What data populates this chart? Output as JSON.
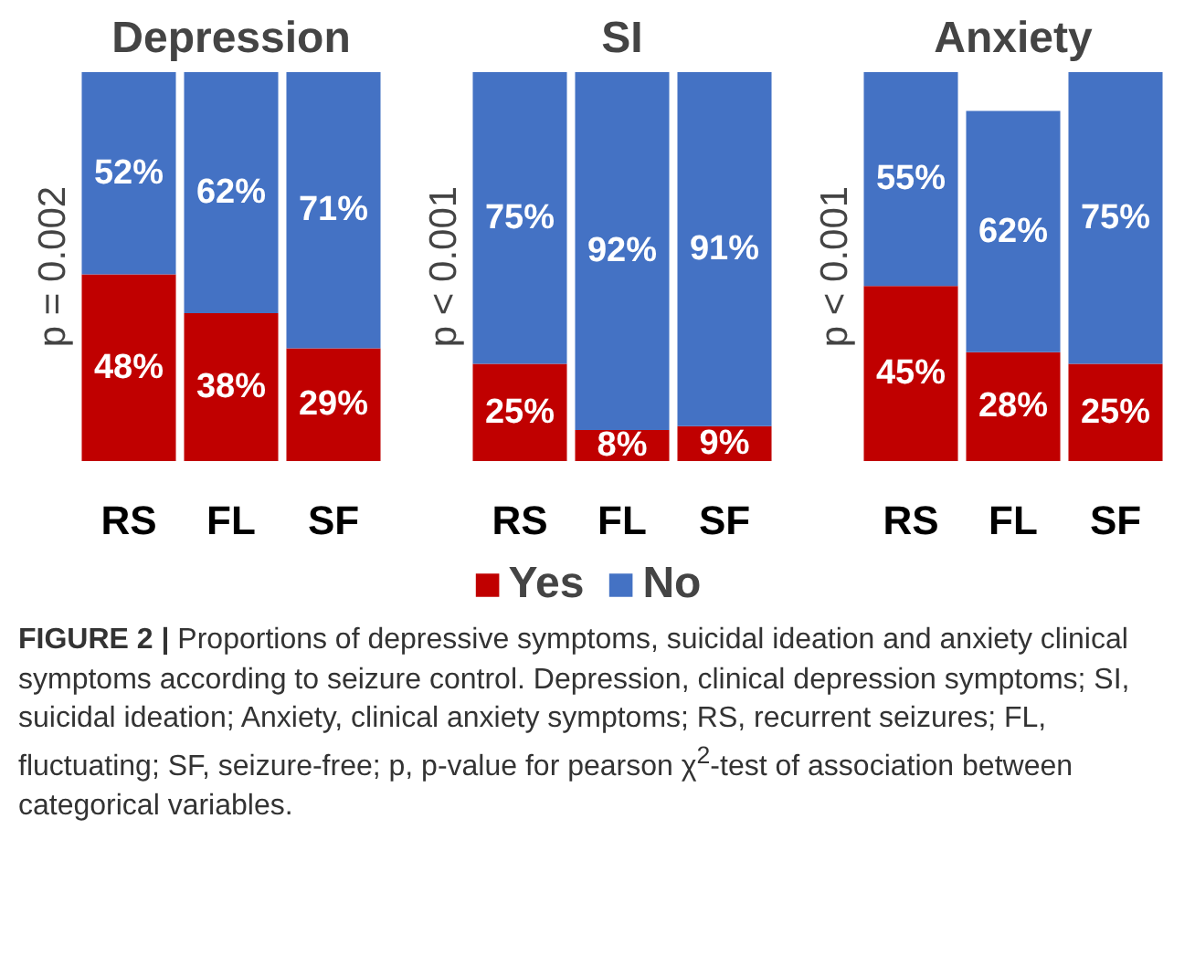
{
  "chart_data": [
    {
      "type": "bar",
      "title": "Depression",
      "ylabel": "p = 0.002",
      "categories": [
        "RS",
        "FL",
        "SF"
      ],
      "stacked": true,
      "tick_labels": "x",
      "series": [
        {
          "color": "#c00000",
          "values": [
            48,
            38,
            29
          ],
          "value_labels": [
            "48%",
            "38%",
            "29%"
          ]
        },
        {
          "color": "#4472c4",
          "values": [
            52,
            62,
            71
          ],
          "value_labels": [
            "52%",
            "62%",
            "71%"
          ]
        }
      ]
    },
    {
      "type": "bar",
      "title": "SI",
      "ylabel": "p < 0.001",
      "categories": [
        "RS",
        "FL",
        "SF"
      ],
      "stacked": true,
      "tick_labels": "x",
      "legend": "bottom",
      "series": [
        {
          "name": "Yes",
          "color": "#c00000",
          "values": [
            25,
            8,
            9
          ],
          "value_labels": [
            "25%",
            "8%",
            "9%"
          ]
        },
        {
          "name": "No",
          "color": "#4472c4",
          "values": [
            75,
            92,
            91
          ],
          "value_labels": [
            "75%",
            "92%",
            "91%"
          ]
        }
      ]
    },
    {
      "type": "bar",
      "title": "Anxiety",
      "ylabel": "p < 0.001",
      "categories": [
        "RS",
        "FL",
        "SF"
      ],
      "stacked": true,
      "tick_labels": "x",
      "series": [
        {
          "color": "#c00000",
          "values": [
            45,
            28,
            25
          ],
          "value_labels": [
            "45%",
            "28%",
            "25%"
          ]
        },
        {
          "color": "#4472c4",
          "values": [
            55,
            62,
            75
          ],
          "value_labels": [
            "55%",
            "62%",
            "75%"
          ]
        }
      ],
      "annotations": [
        "FIGURE 2 | Proportions of depressive symptoms, suicidal ideation and anxiety clinical symptoms according to seizure control. Depression, clinical depression symptoms; SI, suicidal ideation; Anxiety, clinical anxiety symptoms; RS, recurrent seizures; FL, fluctuating; SF, seizure-free; p, p-value for pearson χ$^{2}$-test of association between categorical variables."
      ]
    }
  ]
}
